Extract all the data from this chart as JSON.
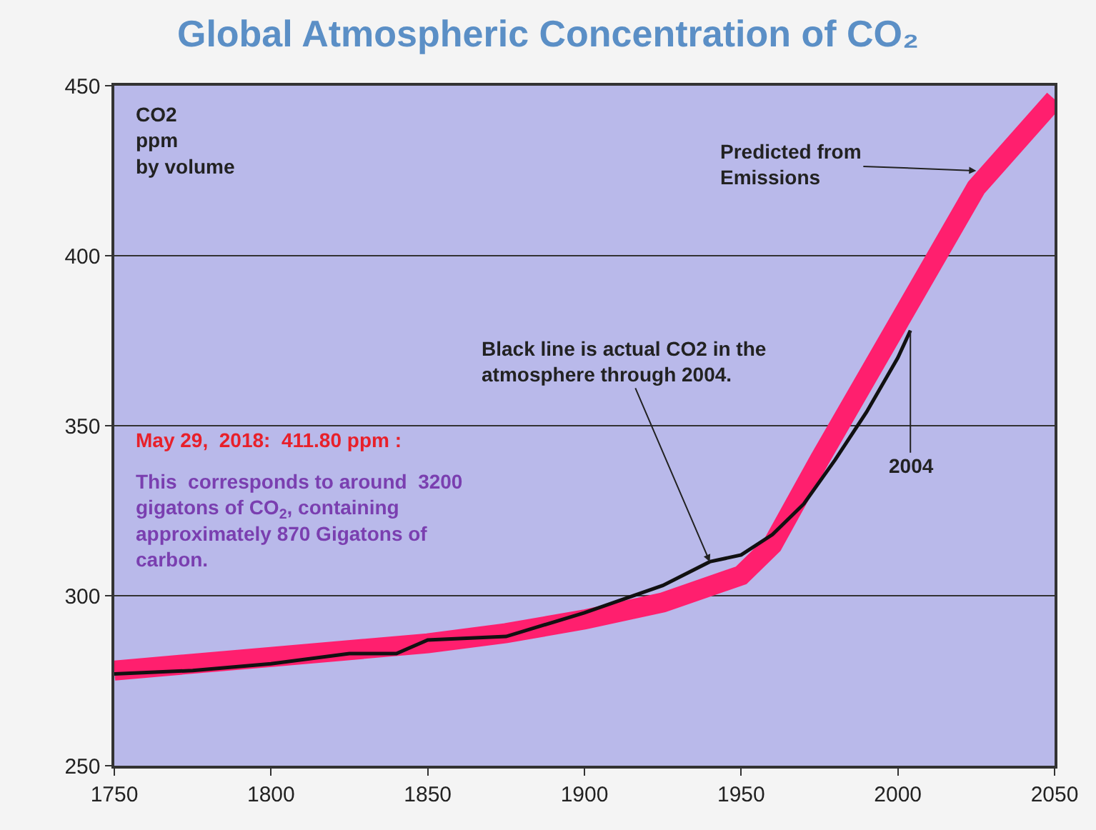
{
  "chart_data": {
    "type": "line",
    "title": "Global Atmospheric Concentration of CO₂",
    "ylabel": "CO2\nppm\nby volume",
    "xlim": [
      1750,
      2050
    ],
    "xticks": [
      1750,
      1800,
      1850,
      1900,
      1950,
      2000,
      2050
    ],
    "ylim": [
      250,
      450
    ],
    "yticks": [
      250,
      300,
      350,
      400,
      450
    ],
    "grid": "y",
    "marker": "none",
    "line_style": "solid",
    "series": [
      {
        "color": "#ff1f6e",
        "x": [
          1750,
          1800,
          1850,
          1875,
          1900,
          1925,
          1950,
          1960,
          1975,
          2000,
          2025,
          2050
        ],
        "values": [
          278,
          282,
          286,
          289,
          293,
          298,
          306,
          315,
          340,
          380,
          420,
          446
        ]
      },
      {
        "color": "#111111",
        "x": [
          1750,
          1775,
          1800,
          1825,
          1840,
          1850,
          1875,
          1900,
          1925,
          1940,
          1950,
          1960,
          1970,
          1980,
          1990,
          2000,
          2004
        ],
        "values": [
          277,
          278,
          280,
          283,
          283,
          287,
          288,
          295,
          303,
          310,
          312,
          318,
          327,
          340,
          354,
          370,
          378
        ]
      }
    ],
    "annotations": [
      {
        "text": "Predicted from\nEmissions",
        "x": 2025,
        "y": 425
      },
      {
        "text": "Black line is actual CO2 in the\natmosphere through 2004.",
        "x": 1940,
        "y": 310
      },
      {
        "text": "2004",
        "x": 2004,
        "y": 378
      },
      "May 29,  2018:  411.80 ppm :",
      "This  corresponds to around  3200\ngigatons of CO$_{2}$, containing\napproximately 870 Gigatons of\ncarbon."
    ]
  }
}
